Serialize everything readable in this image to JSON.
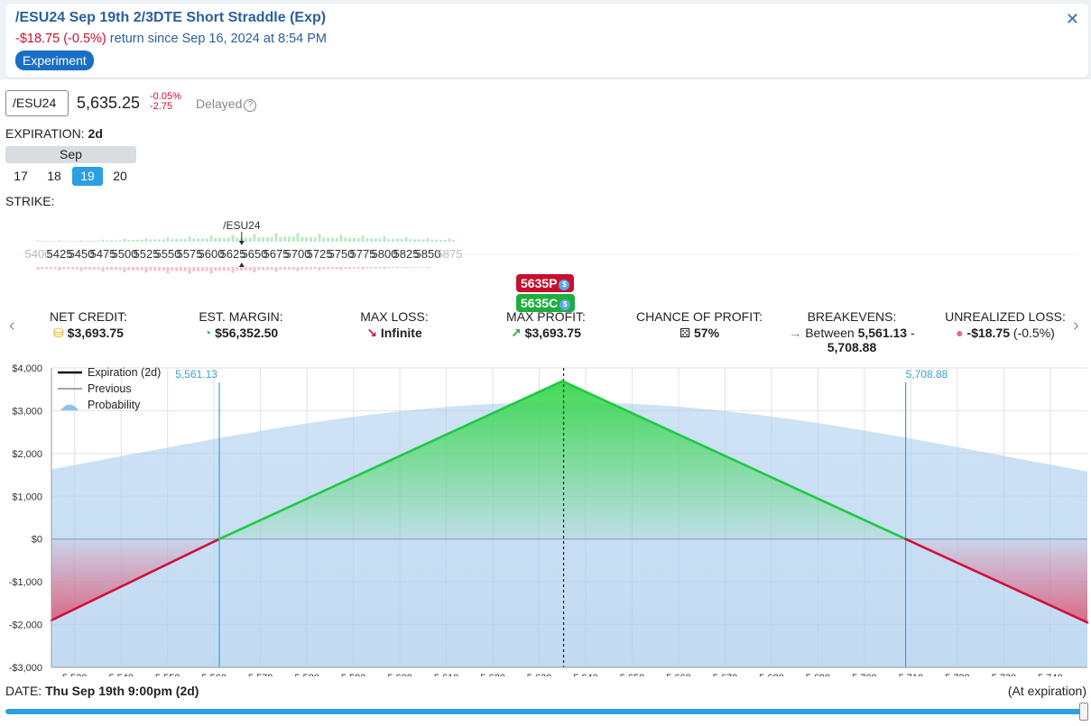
{
  "header": {
    "title": "/ESU24 Sep 19th 2/3DTE Short Straddle (Exp)",
    "return_value": "-$18.75",
    "return_pct": "(-0.5%)",
    "return_text": "return since Sep 16, 2024 at 8:54 PM",
    "badge": "Experiment"
  },
  "quote": {
    "symbol": "/ESU24",
    "price": "5,635.25",
    "change_pct": "-0.05%",
    "change_abs": "-2.75",
    "delayed": "Delayed"
  },
  "expiration": {
    "label": "EXPIRATION:",
    "value": "2d",
    "month": "Sep",
    "days": [
      "17",
      "18",
      "19",
      "20"
    ],
    "selected_day": "19"
  },
  "strike": {
    "label": "STRIKE:",
    "underlying_marker": "/ESU24",
    "strikes": [
      "5400",
      "5425",
      "5450",
      "5475",
      "5500",
      "5525",
      "5550",
      "5575",
      "5600",
      "5625",
      "5650",
      "5675",
      "5700",
      "5725",
      "5750",
      "5775",
      "5800",
      "5825",
      "5850",
      "5875"
    ],
    "put_pill": "5635P",
    "call_pill": "5635C",
    "pill_icon": "$"
  },
  "stats": {
    "net_credit_label": "NET CREDIT:",
    "net_credit_value": "$3,693.75",
    "est_margin_label": "EST. MARGIN:",
    "est_margin_value": "$56,352.50",
    "max_loss_label": "MAX LOSS:",
    "max_loss_value": "Infinite",
    "max_profit_label": "MAX PROFIT:",
    "max_profit_value": "$3,693.75",
    "chance_label": "CHANCE OF PROFIT:",
    "chance_value": "57%",
    "breakevens_label": "BREAKEVENS:",
    "breakevens_prefix": "Between",
    "breakeven_low": "5,561.13",
    "breakeven_dash": "-",
    "breakeven_high": "5,708.88",
    "unrealized_label": "UNREALIZED LOSS:",
    "unrealized_value": "-$18.75",
    "unrealized_pct": "(-0.5%)"
  },
  "colors": {
    "profit": "#1ec940",
    "loss": "#d0103a",
    "probability": "#aecfee",
    "accent": "#2b9fe0",
    "breakeven_line": "#3aa0d6"
  },
  "chart_data": {
    "type": "line",
    "xlim": [
      5525,
      5748
    ],
    "ylim": [
      -3000,
      4000
    ],
    "grid": true,
    "legend": {
      "position": "top-left",
      "entries": [
        "Expiration (2d)",
        "Previous",
        "Probability"
      ]
    },
    "x_ticks": [
      5530,
      5540,
      5550,
      5560,
      5570,
      5580,
      5590,
      5600,
      5610,
      5620,
      5630,
      5640,
      5650,
      5660,
      5670,
      5680,
      5690,
      5700,
      5710,
      5720,
      5730,
      5740
    ],
    "x_tick_labels": [
      "5,530",
      "5,540",
      "5,550",
      "5,560",
      "5,570",
      "5,580",
      "5,590",
      "5,600",
      "5,610",
      "5,620",
      "5,630",
      "5,640",
      "5,650",
      "5,660",
      "5,670",
      "5,680",
      "5,690",
      "5,700",
      "5,710",
      "5,720",
      "5,730",
      "5,740"
    ],
    "y_ticks": [
      4000,
      3000,
      2000,
      1000,
      0,
      -1000,
      -2000,
      -3000
    ],
    "y_tick_labels": [
      "$4,000",
      "$3,000",
      "$2,000",
      "$1,000",
      "$0",
      "-$1,000",
      "-$2,000",
      "-$3,000"
    ],
    "series": [
      {
        "name": "Expiration (2d)",
        "x": [
          5525,
          5561.13,
          5635,
          5708.88,
          5748
        ],
        "y": [
          -1900,
          0,
          3693.75,
          0,
          -1950
        ]
      }
    ],
    "current_price": 5635.25,
    "breakevens": [
      5561.13,
      5708.88
    ],
    "breakeven_labels": [
      "5,561.13",
      "5,708.88"
    ],
    "probability_peak": 3200
  },
  "footer": {
    "date_label": "DATE:",
    "date_value": "Thu Sep 19th 9:00pm (2d)",
    "at_expiration": "(At expiration)"
  }
}
